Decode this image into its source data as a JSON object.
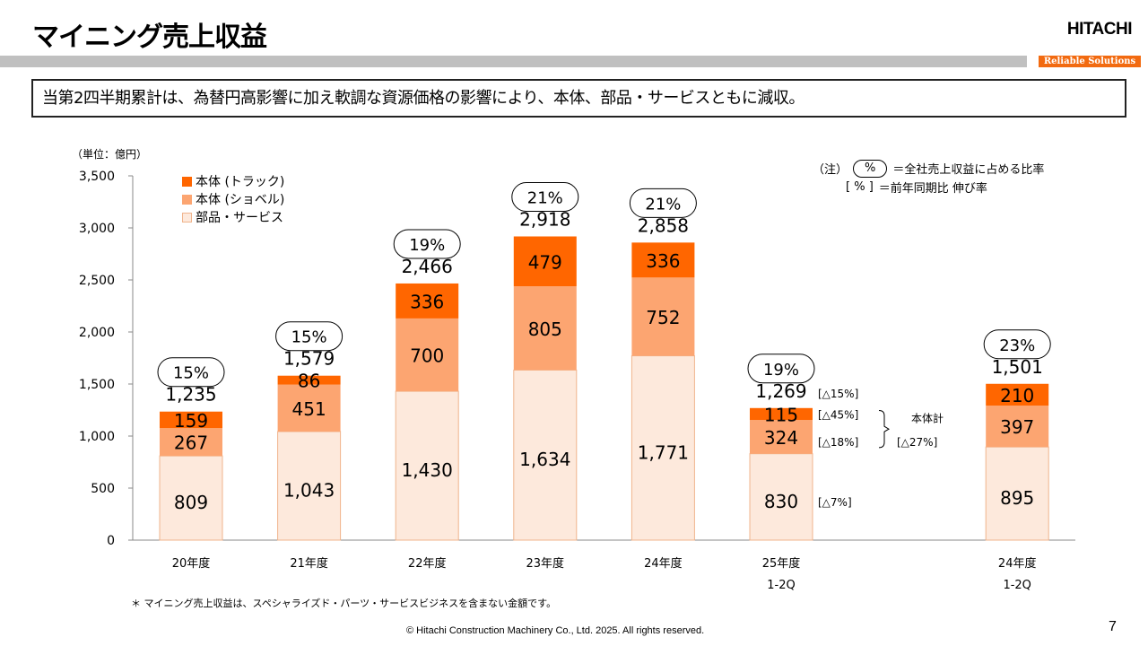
{
  "header": {
    "title": "マイニング売上収益",
    "logo": "HITACHI",
    "tagline": "Reliable Solutions"
  },
  "summary": "当第2四半期累計は、為替円高影響に加え軟調な資源価格の影響により、本体、部品・サービスともに減収。",
  "unit_label": "（単位：億円）",
  "legend": [
    {
      "label": "本体 (トラック)",
      "color": "#ff6600"
    },
    {
      "label": "本体 (ショベル)",
      "color": "#fca571"
    },
    {
      "label": "部品・サービス",
      "color": "#fde9dc"
    }
  ],
  "notes": {
    "prefix": "（注）",
    "pill_symbol": "%",
    "pill_meaning": "＝全社売上収益に占める比率",
    "bracket_symbol": "[ % ]",
    "bracket_meaning": "＝前年同期比  伸び率"
  },
  "chart_data": {
    "type": "bar",
    "stacked": true,
    "title": "マイニング売上収益",
    "ylabel": "（単位：億円）",
    "xlabel": "",
    "ylim": [
      0,
      3500
    ],
    "yticks": [
      0,
      500,
      1000,
      1500,
      2000,
      2500,
      3000,
      3500
    ],
    "ytick_labels": [
      "0",
      "500",
      "1,000",
      "1,500",
      "2,000",
      "2,500",
      "3,000",
      "3,500"
    ],
    "grid": false,
    "legend_position": "top-left",
    "categories": [
      {
        "line1": "20年度",
        "line2": ""
      },
      {
        "line1": "21年度",
        "line2": ""
      },
      {
        "line1": "22年度",
        "line2": ""
      },
      {
        "line1": "23年度",
        "line2": ""
      },
      {
        "line1": "24年度",
        "line2": ""
      },
      {
        "line1": "25年度",
        "line2": "1-2Q"
      },
      {
        "line1": "24年度",
        "line2": "1-2Q"
      }
    ],
    "category_slots": [
      0,
      1,
      2,
      3,
      4,
      5,
      7
    ],
    "series": [
      {
        "name": "部品・サービス",
        "color": "#fde9dc",
        "values": [
          809,
          1043,
          1430,
          1634,
          1771,
          830,
          895
        ],
        "labels": [
          "809",
          "1,043",
          "1,430",
          "1,634",
          "1,771",
          "830",
          "895"
        ]
      },
      {
        "name": "本体 (ショベル)",
        "color": "#fca571",
        "values": [
          267,
          451,
          700,
          805,
          752,
          324,
          397
        ],
        "labels": [
          "267",
          "451",
          "700",
          "805",
          "752",
          "324",
          "397"
        ]
      },
      {
        "name": "本体 (トラック)",
        "color": "#ff6600",
        "values": [
          159,
          86,
          336,
          479,
          336,
          115,
          210
        ],
        "labels": [
          "159",
          "86",
          "336",
          "479",
          "336",
          "115",
          "210"
        ]
      }
    ],
    "totals": [
      1235,
      1579,
      2466,
      2918,
      2858,
      1269,
      1501
    ],
    "total_labels": [
      "1,235",
      "1,579",
      "2,466",
      "2,918",
      "2,858",
      "1,269",
      "1,501"
    ],
    "share_of_company": [
      "15%",
      "15%",
      "19%",
      "21%",
      "21%",
      "19%",
      "23%"
    ],
    "yoy_annotations": {
      "category": "25年度 1-2Q",
      "total": "[△15%]",
      "truck": "[△45%]",
      "shovel": "[△18%]",
      "parts_service": "[△7%]",
      "body_total_label": "本体計",
      "body_total": "[△27%]"
    }
  },
  "footnote": "＊ マイニング売上収益は、スペシャライズド・パーツ・サービスビジネスを含まない金額です。",
  "copyright": "© Hitachi Construction Machinery Co., Ltd. 2025. All rights reserved.",
  "page_number": "7"
}
